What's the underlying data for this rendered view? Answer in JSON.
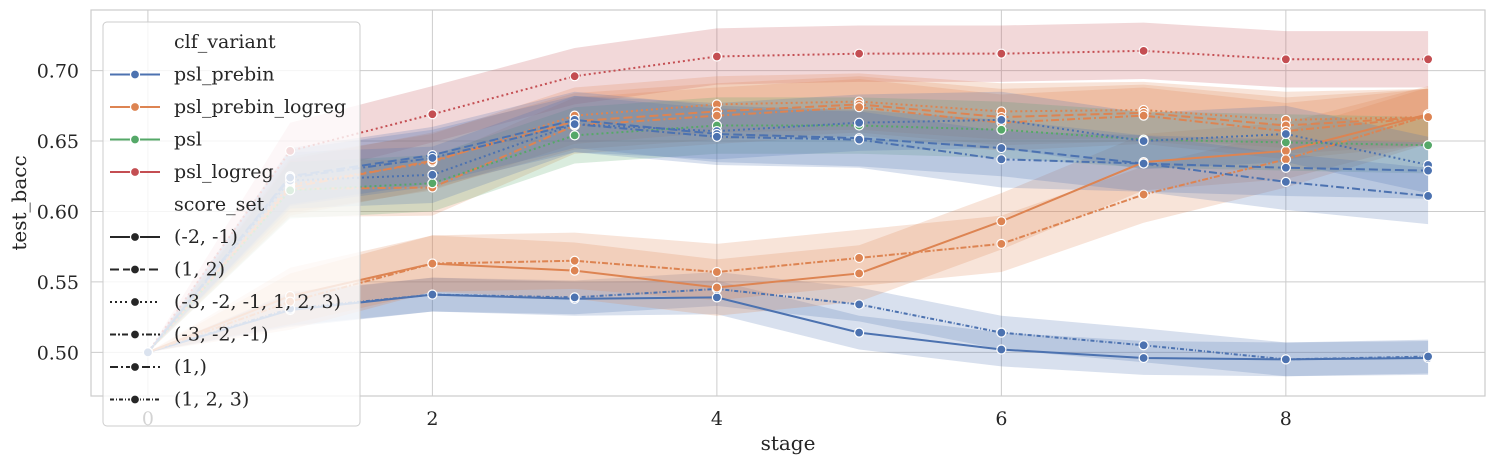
{
  "chart_data": {
    "type": "line",
    "xlabel": "stage",
    "ylabel": "test_bacc",
    "xlim": [
      -0.4,
      9.4
    ],
    "ylim": [
      0.469,
      0.743
    ],
    "xticks": [
      0,
      2,
      4,
      6,
      8
    ],
    "xtick_labels": [
      "0",
      "2",
      "4",
      "6",
      "8"
    ],
    "yticks": [
      0.5,
      0.55,
      0.6,
      0.65,
      0.7
    ],
    "ytick_labels": [
      "0.50",
      "0.55",
      "0.60",
      "0.65",
      "0.70"
    ],
    "grid": true,
    "legend": {
      "placement": "top-left",
      "hue_title": "clf_variant",
      "hue_entries": [
        {
          "label": "psl_prebin",
          "color": "#4c72b0"
        },
        {
          "label": "psl_prebin_logreg",
          "color": "#dd8452"
        },
        {
          "label": "psl",
          "color": "#55a868"
        },
        {
          "label": "psl_logreg",
          "color": "#c44e52"
        }
      ],
      "style_title": "score_set",
      "style_entries": [
        {
          "label": "(-2, -1)",
          "dash": ""
        },
        {
          "label": "(1, 2)",
          "dash": "9,4"
        },
        {
          "label": "(-3, -2, -1, 1, 2, 3)",
          "dash": "2,3"
        },
        {
          "label": "(-3, -2, -1)",
          "dash": "6,2,2,2"
        },
        {
          "label": "(1,)",
          "dash": "8,3,2,3"
        },
        {
          "label": "(1, 2, 3)",
          "dash": "4,2,1,2"
        }
      ]
    },
    "series": [
      {
        "name": "psl_prebin (-2, -1)",
        "color": "#4c72b0",
        "dash": "",
        "band": 0.012,
        "x": [
          0,
          1,
          2,
          3,
          4,
          5,
          6,
          7,
          8,
          9
        ],
        "values": [
          0.5,
          0.53,
          0.541,
          0.538,
          0.539,
          0.514,
          0.502,
          0.496,
          0.495,
          0.496
        ]
      },
      {
        "name": "psl_prebin (1, 2, 3)",
        "color": "#4c72b0",
        "dash": "4,2,1,2",
        "band": 0.012,
        "x": [
          0,
          1,
          2,
          3,
          4,
          5,
          6,
          7,
          8,
          9
        ],
        "values": [
          0.5,
          0.531,
          0.541,
          0.539,
          0.545,
          0.534,
          0.514,
          0.505,
          0.495,
          0.497
        ]
      },
      {
        "name": "psl_prebin_logreg (-2, -1)",
        "color": "#dd8452",
        "dash": "",
        "band": 0.02,
        "x": [
          0,
          1,
          2,
          3,
          4,
          5,
          6,
          7,
          8,
          9
        ],
        "values": [
          0.5,
          0.54,
          0.563,
          0.558,
          0.546,
          0.556,
          0.593,
          0.635,
          0.643,
          0.669
        ]
      },
      {
        "name": "psl_prebin_logreg (-3, -2, -1)",
        "color": "#dd8452",
        "dash": "6,2,2,2",
        "band": 0.02,
        "x": [
          0,
          1,
          2,
          3,
          4,
          5,
          6,
          7,
          8,
          9
        ],
        "values": [
          0.5,
          0.536,
          0.563,
          0.565,
          0.557,
          0.567,
          0.577,
          0.612,
          0.637,
          0.668
        ]
      },
      {
        "name": "psl_logreg (-3, -2, -1, 1, 2, 3)",
        "color": "#c44e52",
        "dash": "2,3",
        "band": 0.02,
        "x": [
          0,
          1,
          2,
          3,
          4,
          5,
          6,
          7,
          8,
          9
        ],
        "values": [
          0.5,
          0.643,
          0.669,
          0.696,
          0.71,
          0.712,
          0.712,
          0.714,
          0.708,
          0.708
        ]
      },
      {
        "name": "psl_prebin_logreg (-3, -2, -1, 1, 2, 3)",
        "color": "#dd8452",
        "dash": "2,3",
        "band": 0.02,
        "x": [
          0,
          1,
          2,
          3,
          4,
          5,
          6,
          7,
          8,
          9
        ],
        "values": [
          0.5,
          0.619,
          0.635,
          0.668,
          0.676,
          0.678,
          0.671,
          0.672,
          0.665,
          0.667
        ]
      },
      {
        "name": "psl_prebin_logreg (1, 2)",
        "color": "#dd8452",
        "dash": "9,4",
        "band": 0.02,
        "x": [
          0,
          1,
          2,
          3,
          4,
          5,
          6,
          7,
          8,
          9
        ],
        "values": [
          0.5,
          0.617,
          0.636,
          0.664,
          0.671,
          0.676,
          0.667,
          0.67,
          0.661,
          0.667
        ]
      },
      {
        "name": "psl_prebin_logreg (1,)",
        "color": "#dd8452",
        "dash": "8,3,2,3",
        "band": 0.02,
        "x": [
          0,
          1,
          2,
          3,
          4,
          5,
          6,
          7,
          8,
          9
        ],
        "values": [
          0.5,
          0.616,
          0.617,
          0.661,
          0.668,
          0.674,
          0.663,
          0.668,
          0.657,
          0.667
        ]
      },
      {
        "name": "psl (-3, -2, -1, 1, 2, 3)",
        "color": "#55a868",
        "dash": "2,3",
        "band": 0.02,
        "x": [
          0,
          1,
          2,
          3,
          4,
          5,
          6,
          7,
          8,
          9
        ],
        "values": [
          0.5,
          0.615,
          0.62,
          0.654,
          0.661,
          0.661,
          0.658,
          0.651,
          0.649,
          0.647
        ]
      },
      {
        "name": "psl_prebin (-3, -2, -1, 1, 2, 3)",
        "color": "#4c72b0",
        "dash": "2,3",
        "band": 0.02,
        "x": [
          0,
          1,
          2,
          3,
          4,
          5,
          6,
          7,
          8,
          9
        ],
        "values": [
          0.5,
          0.622,
          0.626,
          0.662,
          0.657,
          0.663,
          0.665,
          0.65,
          0.655,
          0.633
        ]
      },
      {
        "name": "psl_prebin (1, 2)",
        "color": "#4c72b0",
        "dash": "9,4",
        "band": 0.02,
        "x": [
          0,
          1,
          2,
          3,
          4,
          5,
          6,
          7,
          8,
          9
        ],
        "values": [
          0.5,
          0.625,
          0.64,
          0.665,
          0.655,
          0.652,
          0.645,
          0.634,
          0.631,
          0.629
        ]
      },
      {
        "name": "psl_prebin (1,)",
        "color": "#4c72b0",
        "dash": "8,3,2,3",
        "band": 0.02,
        "x": [
          0,
          1,
          2,
          3,
          4,
          5,
          6,
          7,
          8,
          9
        ],
        "values": [
          0.5,
          0.624,
          0.638,
          0.662,
          0.653,
          0.651,
          0.637,
          0.634,
          0.621,
          0.611
        ]
      }
    ]
  }
}
